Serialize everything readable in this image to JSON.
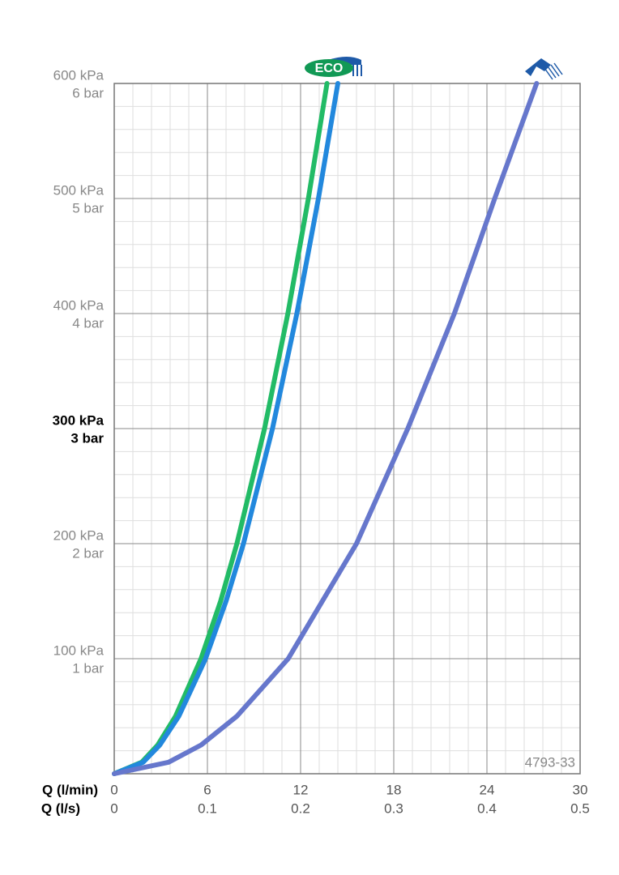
{
  "chart_data": {
    "type": "line",
    "xlim": [
      0,
      30
    ],
    "xticks": [
      0,
      6,
      12,
      18,
      24,
      30
    ],
    "x_label": "Q (l/min)",
    "x2lim": [
      0,
      0.5
    ],
    "x2ticks": [
      0,
      0.1,
      0.2,
      0.3,
      0.4,
      0.5
    ],
    "x2_label": "Q (l/s)",
    "ylim": [
      0,
      600
    ],
    "yticks": [
      {
        "value": 100,
        "label": "100 kPa"
      },
      {
        "value": 200,
        "label": "200 kPa"
      },
      {
        "value": 300,
        "label": "300 kPa"
      },
      {
        "value": 400,
        "label": "400 kPa"
      },
      {
        "value": 500,
        "label": "500 kPa"
      },
      {
        "value": 600,
        "label": "600 kPa"
      }
    ],
    "y2lim": [
      0,
      6
    ],
    "y2ticks": [
      {
        "value": 1,
        "label": "1 bar"
      },
      {
        "value": 2,
        "label": "2 bar"
      },
      {
        "value": 3,
        "label": "3 bar"
      },
      {
        "value": 4,
        "label": "4 bar"
      },
      {
        "value": 5,
        "label": "5 bar"
      },
      {
        "value": 6,
        "label": "6 bar"
      }
    ],
    "highlight_ytick": 300,
    "grid": true,
    "minor_grid_divisions": 5,
    "eco_label": "ECO",
    "annotation": "4793-33",
    "series": [
      {
        "color": "#22bb66",
        "x": [
          0,
          1.77,
          2.8,
          3.95,
          5.59,
          6.85,
          7.9,
          9.68,
          11.18,
          12.5,
          13.7
        ],
        "values": [
          0,
          10,
          25,
          50,
          100,
          150,
          200,
          300,
          400,
          500,
          600
        ]
      },
      {
        "color": "#2288dd",
        "x": [
          0,
          1.86,
          2.94,
          4.16,
          5.88,
          7.2,
          8.32,
          10.19,
          11.76,
          13.15,
          14.4
        ],
        "values": [
          0,
          10,
          25,
          50,
          100,
          150,
          200,
          300,
          400,
          500,
          600
        ]
      },
      {
        "color": "#6677cc",
        "x": [
          0,
          3.5,
          5.6,
          7.9,
          11.2,
          15.6,
          18.9,
          21.9,
          24.5,
          27.2
        ],
        "values": [
          0,
          10,
          25,
          50,
          100,
          200,
          300,
          400,
          500,
          600
        ]
      }
    ]
  }
}
